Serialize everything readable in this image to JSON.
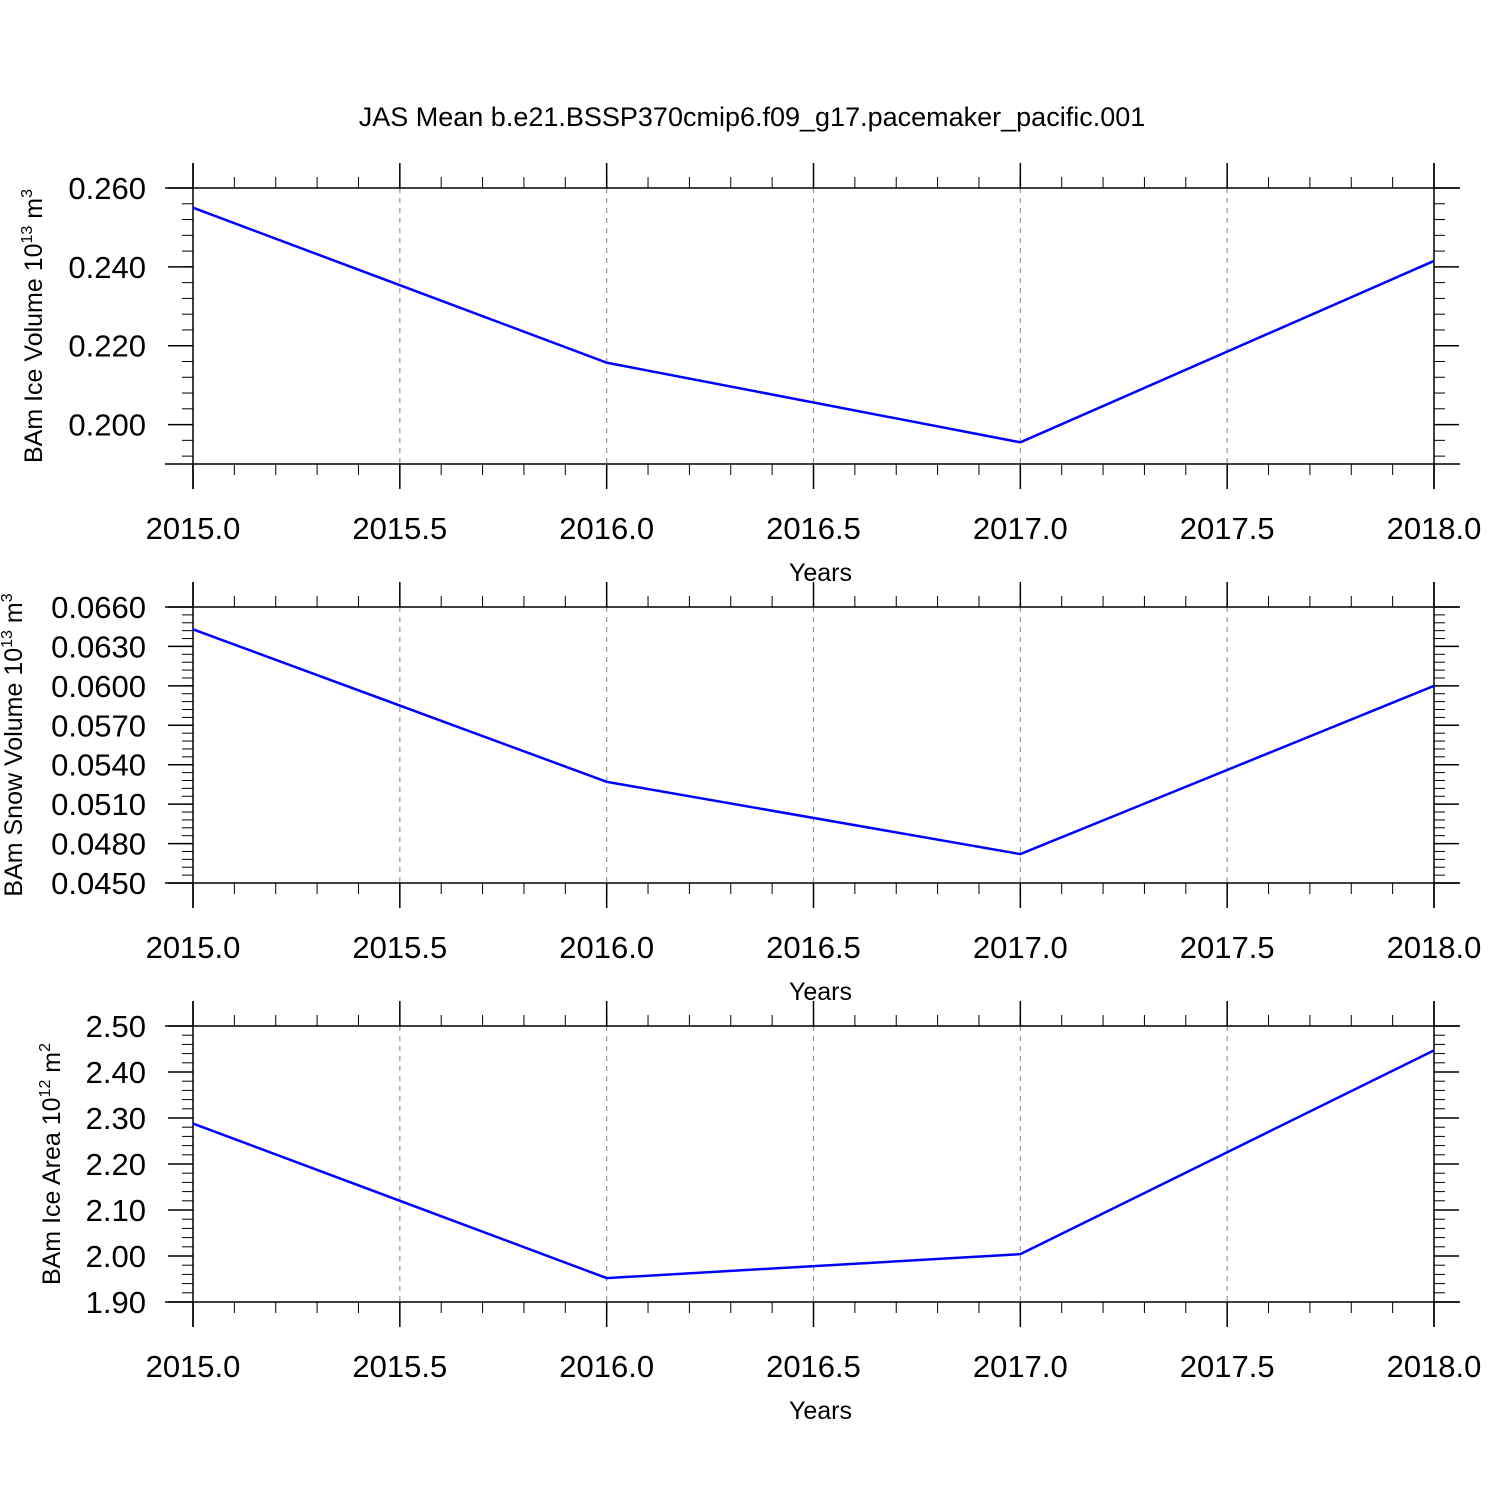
{
  "title": "JAS Mean b.e21.BSSP370cmip6.f09_g17.pacemaker_pacific.001",
  "colors": {
    "series": "#0000ff",
    "axes": "#000000",
    "grid": "#999999"
  },
  "chart_data": [
    {
      "type": "line",
      "ylabel": {
        "base": "BAm Ice Volume 10",
        "sup": "13",
        "unit": " m",
        "unit_sup": "3"
      },
      "xlabel": "Years",
      "xlim": [
        2015.0,
        2018.0
      ],
      "ylim": [
        0.19,
        0.26
      ],
      "xticks": [
        2015.0,
        2015.5,
        2016.0,
        2016.5,
        2017.0,
        2017.5,
        2018.0
      ],
      "xtick_labels": [
        "2015.0",
        "2015.5",
        "2016.0",
        "2016.5",
        "2017.0",
        "2017.5",
        "2018.0"
      ],
      "yticks": [
        0.2,
        0.22,
        0.24,
        0.26
      ],
      "ytick_labels": [
        "0.200",
        "0.220",
        "0.240",
        "0.260"
      ],
      "x": [
        2015,
        2016,
        2017,
        2018
      ],
      "series": [
        {
          "values": [
            0.255,
            0.2157,
            0.1955,
            0.2415
          ]
        }
      ],
      "grid": "vertical-dashed"
    },
    {
      "type": "line",
      "ylabel": {
        "base": "BAm Snow Volume 10",
        "sup": "13",
        "unit": " m",
        "unit_sup": "3"
      },
      "xlabel": "Years",
      "xlim": [
        2015.0,
        2018.0
      ],
      "ylim": [
        0.045,
        0.066
      ],
      "xticks": [
        2015.0,
        2015.5,
        2016.0,
        2016.5,
        2017.0,
        2017.5,
        2018.0
      ],
      "xtick_labels": [
        "2015.0",
        "2015.5",
        "2016.0",
        "2016.5",
        "2017.0",
        "2017.5",
        "2018.0"
      ],
      "yticks": [
        0.045,
        0.048,
        0.051,
        0.054,
        0.057,
        0.06,
        0.063,
        0.066
      ],
      "ytick_labels": [
        "0.0450",
        "0.0480",
        "0.0510",
        "0.0540",
        "0.0570",
        "0.0600",
        "0.0630",
        "0.0660"
      ],
      "x": [
        2015,
        2016,
        2017,
        2018
      ],
      "series": [
        {
          "values": [
            0.0643,
            0.0527,
            0.0472,
            0.06
          ]
        }
      ],
      "grid": "vertical-dashed"
    },
    {
      "type": "line",
      "ylabel": {
        "base": "BAm Ice Area 10",
        "sup": "12",
        "unit": " m",
        "unit_sup": "2"
      },
      "xlabel": "Years",
      "xlim": [
        2015.0,
        2018.0
      ],
      "ylim": [
        1.9,
        2.5
      ],
      "xticks": [
        2015.0,
        2015.5,
        2016.0,
        2016.5,
        2017.0,
        2017.5,
        2018.0
      ],
      "xtick_labels": [
        "2015.0",
        "2015.5",
        "2016.0",
        "2016.5",
        "2017.0",
        "2017.5",
        "2018.0"
      ],
      "yticks": [
        1.9,
        2.0,
        2.1,
        2.2,
        2.3,
        2.4,
        2.5
      ],
      "ytick_labels": [
        "1.90",
        "2.00",
        "2.10",
        "2.20",
        "2.30",
        "2.40",
        "2.50"
      ],
      "x": [
        2015,
        2016,
        2017,
        2018
      ],
      "series": [
        {
          "values": [
            2.288,
            1.952,
            2.004,
            2.447
          ]
        }
      ],
      "grid": "vertical-dashed"
    }
  ]
}
